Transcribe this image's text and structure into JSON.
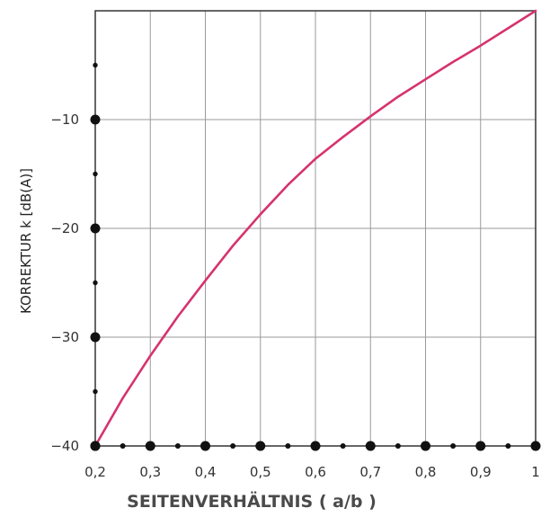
{
  "chart_data": {
    "type": "line",
    "title": "",
    "xlabel": "SEITENVERHÄLTNIS  ( a/b )",
    "ylabel": "KORREKTUR k [dB(A)]",
    "xlim": [
      0.2,
      1.0
    ],
    "ylim": [
      -40,
      0
    ],
    "grid": true,
    "x_ticks": [
      0.2,
      0.3,
      0.4,
      0.5,
      0.6,
      0.7,
      0.8,
      0.9,
      1.0
    ],
    "x_tick_labels": [
      "0,2",
      "0,3",
      "0,4",
      "0,5",
      "0,6",
      "0,7",
      "0,8",
      "0,9",
      "1"
    ],
    "y_ticks": [
      -10,
      -20,
      -30,
      -40
    ],
    "y_tick_labels": [
      "−10",
      "−20",
      "−30",
      "−40"
    ],
    "x_minor_ticks": [
      0.25,
      0.35,
      0.45,
      0.55,
      0.65,
      0.75,
      0.85,
      0.95
    ],
    "y_minor_ticks": [
      -5,
      -15,
      -25,
      -35
    ],
    "series": [
      {
        "color": "#d6336e",
        "x": [
          0.2,
          0.25,
          0.3,
          0.35,
          0.4,
          0.45,
          0.5,
          0.55,
          0.6,
          0.65,
          0.7,
          0.75,
          0.8,
          0.85,
          0.9,
          0.95,
          1.0
        ],
        "y": [
          -40,
          -35.6,
          -31.7,
          -28.1,
          -24.8,
          -21.6,
          -18.7,
          -16.0,
          -13.6,
          -11.6,
          -9.7,
          -7.9,
          -6.3,
          -4.7,
          -3.2,
          -1.6,
          0
        ]
      }
    ]
  }
}
